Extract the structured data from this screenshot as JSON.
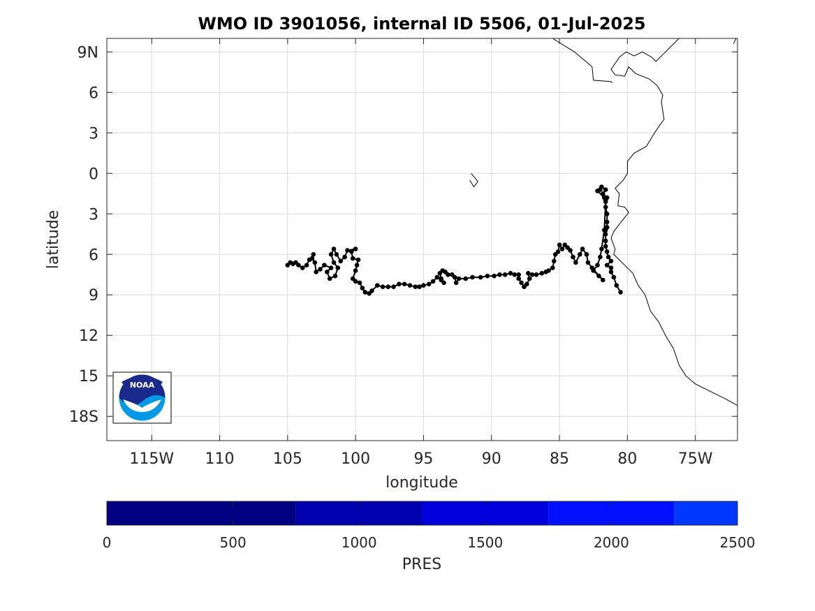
{
  "chart_data": {
    "type": "scatter",
    "title": "WMO ID 3901056, internal ID 5506, 01-Jul-2025",
    "xlabel": "longitude",
    "ylabel": "latitude",
    "xlim": [
      -118.3,
      -71.9
    ],
    "ylim": [
      -19.8,
      10.0
    ],
    "x_ticks": [
      {
        "value": -115,
        "label": "115W"
      },
      {
        "value": -110,
        "label": "110"
      },
      {
        "value": -105,
        "label": "105"
      },
      {
        "value": -100,
        "label": "100"
      },
      {
        "value": -95,
        "label": "95"
      },
      {
        "value": -90,
        "label": "90"
      },
      {
        "value": -85,
        "label": "85"
      },
      {
        "value": -80,
        "label": "80"
      },
      {
        "value": -75,
        "label": "75W"
      }
    ],
    "y_ticks": [
      {
        "value": 9,
        "label": "9N"
      },
      {
        "value": 6,
        "label": "6"
      },
      {
        "value": 3,
        "label": "3"
      },
      {
        "value": 0,
        "label": "0"
      },
      {
        "value": -3,
        "label": "3"
      },
      {
        "value": -6,
        "label": "6"
      },
      {
        "value": -9,
        "label": "9"
      },
      {
        "value": -12,
        "label": "12"
      },
      {
        "value": -15,
        "label": "15"
      },
      {
        "value": -18,
        "label": "18S"
      }
    ],
    "grid": true,
    "series": [
      {
        "color": "#000000",
        "points": [
          [
            -80.5,
            -8.8
          ],
          [
            -80.8,
            -8.3
          ],
          [
            -81.0,
            -7.7
          ],
          [
            -81.2,
            -7.3
          ],
          [
            -81.2,
            -7.0
          ],
          [
            -81.5,
            -6.8
          ],
          [
            -81.2,
            -6.5
          ],
          [
            -81.4,
            -6.2
          ],
          [
            -81.5,
            -5.8
          ],
          [
            -81.6,
            -5.4
          ],
          [
            -81.6,
            -5.0
          ],
          [
            -81.6,
            -4.5
          ],
          [
            -81.6,
            -4.2
          ],
          [
            -81.5,
            -4.0
          ],
          [
            -81.5,
            -3.6
          ],
          [
            -81.5,
            -3.0
          ],
          [
            -81.6,
            -2.5
          ],
          [
            -81.6,
            -2.0
          ],
          [
            -81.5,
            -1.8
          ],
          [
            -81.8,
            -1.5
          ],
          [
            -81.6,
            -1.2
          ],
          [
            -81.9,
            -1.0
          ],
          [
            -82.0,
            -1.2
          ],
          [
            -82.2,
            -1.3
          ],
          [
            -81.7,
            -1.8
          ],
          [
            -81.6,
            -2.1
          ],
          [
            -81.7,
            -4.2
          ],
          [
            -81.9,
            -5.6
          ],
          [
            -82.0,
            -6.2
          ],
          [
            -82.2,
            -6.8
          ],
          [
            -82.5,
            -7.2
          ],
          [
            -82.1,
            -7.6
          ],
          [
            -81.8,
            -7.9
          ],
          [
            -82.6,
            -7.0
          ],
          [
            -82.9,
            -6.6
          ],
          [
            -83.0,
            -6.0
          ],
          [
            -83.3,
            -5.6
          ],
          [
            -83.5,
            -6.0
          ],
          [
            -83.8,
            -6.6
          ],
          [
            -84.0,
            -6.2
          ],
          [
            -84.2,
            -5.7
          ],
          [
            -84.4,
            -5.5
          ],
          [
            -84.6,
            -5.3
          ],
          [
            -84.8,
            -5.6
          ],
          [
            -85.0,
            -5.3
          ],
          [
            -85.1,
            -5.8
          ],
          [
            -85.3,
            -6.0
          ],
          [
            -85.4,
            -6.5
          ],
          [
            -85.5,
            -7.0
          ],
          [
            -85.8,
            -7.2
          ],
          [
            -86.0,
            -7.3
          ],
          [
            -86.3,
            -7.4
          ],
          [
            -86.7,
            -7.5
          ],
          [
            -87.0,
            -7.5
          ],
          [
            -87.3,
            -7.4
          ],
          [
            -87.2,
            -7.8
          ],
          [
            -87.4,
            -8.2
          ],
          [
            -87.6,
            -8.4
          ],
          [
            -87.8,
            -8.1
          ],
          [
            -88.0,
            -7.8
          ],
          [
            -88.0,
            -7.5
          ],
          [
            -88.3,
            -7.5
          ],
          [
            -88.6,
            -7.4
          ],
          [
            -89.0,
            -7.5
          ],
          [
            -89.4,
            -7.5
          ],
          [
            -89.8,
            -7.6
          ],
          [
            -90.3,
            -7.6
          ],
          [
            -90.8,
            -7.7
          ],
          [
            -91.4,
            -7.7
          ],
          [
            -91.9,
            -7.8
          ],
          [
            -92.4,
            -7.8
          ],
          [
            -92.6,
            -8.1
          ],
          [
            -92.7,
            -7.7
          ],
          [
            -92.9,
            -7.5
          ],
          [
            -93.2,
            -7.5
          ],
          [
            -93.4,
            -7.3
          ],
          [
            -93.6,
            -7.2
          ],
          [
            -93.8,
            -7.4
          ],
          [
            -93.7,
            -7.8
          ],
          [
            -93.5,
            -8.1
          ],
          [
            -93.7,
            -7.9
          ],
          [
            -94.0,
            -7.7
          ],
          [
            -94.3,
            -8.0
          ],
          [
            -94.6,
            -8.2
          ],
          [
            -95.0,
            -8.3
          ],
          [
            -95.3,
            -8.4
          ],
          [
            -95.6,
            -8.4
          ],
          [
            -96.0,
            -8.3
          ],
          [
            -96.4,
            -8.2
          ],
          [
            -96.8,
            -8.2
          ],
          [
            -97.2,
            -8.4
          ],
          [
            -97.6,
            -8.4
          ],
          [
            -98.0,
            -8.4
          ],
          [
            -98.4,
            -8.3
          ],
          [
            -98.8,
            -8.7
          ],
          [
            -99.0,
            -8.9
          ],
          [
            -99.3,
            -8.8
          ],
          [
            -99.5,
            -8.5
          ],
          [
            -99.7,
            -8.1
          ],
          [
            -100.0,
            -8.0
          ],
          [
            -100.2,
            -7.8
          ],
          [
            -100.0,
            -7.2
          ],
          [
            -99.9,
            -6.8
          ],
          [
            -99.8,
            -6.4
          ],
          [
            -100.2,
            -6.3
          ],
          [
            -100.3,
            -5.8
          ],
          [
            -100.0,
            -5.6
          ],
          [
            -100.6,
            -5.7
          ],
          [
            -100.8,
            -6.2
          ],
          [
            -101.1,
            -6.5
          ],
          [
            -101.4,
            -6.0
          ],
          [
            -101.6,
            -5.6
          ],
          [
            -101.8,
            -6.0
          ],
          [
            -101.6,
            -6.6
          ],
          [
            -101.3,
            -7.0
          ],
          [
            -101.5,
            -7.6
          ],
          [
            -101.9,
            -7.8
          ],
          [
            -102.1,
            -7.3
          ],
          [
            -101.8,
            -7.0
          ],
          [
            -102.3,
            -6.8
          ],
          [
            -102.6,
            -7.1
          ],
          [
            -102.9,
            -7.3
          ],
          [
            -103.0,
            -6.6
          ],
          [
            -103.2,
            -6.3
          ],
          [
            -103.1,
            -6.0
          ],
          [
            -103.4,
            -6.4
          ],
          [
            -103.6,
            -6.8
          ],
          [
            -103.9,
            -7.0
          ],
          [
            -104.2,
            -6.8
          ],
          [
            -104.4,
            -6.6
          ],
          [
            -104.6,
            -6.7
          ],
          [
            -104.8,
            -6.6
          ],
          [
            -105.0,
            -6.8
          ]
        ]
      }
    ],
    "coastlines": [
      [
        [
          -81.1,
          6.7
        ],
        [
          -81.2,
          6.8
        ],
        [
          -82.5,
          6.9
        ],
        [
          -82.6,
          7.9
        ],
        [
          -83.3,
          8.5
        ],
        [
          -83.9,
          9.0
        ],
        [
          -85.5,
          10.0
        ]
      ],
      [
        [
          -76.2,
          10.0
        ],
        [
          -76.8,
          9.4
        ],
        [
          -77.3,
          8.9
        ],
        [
          -77.9,
          8.3
        ],
        [
          -78.2,
          8.6
        ],
        [
          -78.9,
          9.0
        ],
        [
          -79.5,
          8.7
        ],
        [
          -80.1,
          9.0
        ],
        [
          -80.6,
          8.6
        ],
        [
          -81.2,
          7.7
        ],
        [
          -80.9,
          7.3
        ],
        [
          -80.2,
          7.2
        ],
        [
          -79.9,
          7.9
        ],
        [
          -79.4,
          7.4
        ],
        [
          -78.4,
          7.0
        ],
        [
          -77.8,
          6.5
        ],
        [
          -77.4,
          5.8
        ],
        [
          -77.5,
          5.3
        ],
        [
          -77.3,
          4.0
        ],
        [
          -77.6,
          3.6
        ],
        [
          -78.0,
          3.0
        ],
        [
          -78.3,
          2.5
        ],
        [
          -78.6,
          2.0
        ],
        [
          -79.5,
          1.5
        ],
        [
          -80.0,
          0.9
        ],
        [
          -80.0,
          0.0
        ],
        [
          -80.3,
          -0.5
        ],
        [
          -80.9,
          -1.1
        ],
        [
          -80.6,
          -1.5
        ],
        [
          -80.7,
          -2.4
        ],
        [
          -80.2,
          -2.5
        ],
        [
          -79.9,
          -2.9
        ],
        [
          -80.3,
          -3.4
        ],
        [
          -81.0,
          -4.3
        ],
        [
          -81.2,
          -4.8
        ],
        [
          -80.9,
          -5.6
        ],
        [
          -81.0,
          -6.0
        ],
        [
          -80.2,
          -6.8
        ],
        [
          -79.6,
          -7.4
        ],
        [
          -79.2,
          -8.3
        ],
        [
          -78.7,
          -9.0
        ],
        [
          -78.3,
          -10.2
        ],
        [
          -77.7,
          -11.0
        ],
        [
          -77.2,
          -12.0
        ],
        [
          -76.6,
          -13.0
        ],
        [
          -76.2,
          -14.2
        ],
        [
          -75.7,
          -15.0
        ],
        [
          -75.0,
          -15.6
        ],
        [
          -73.8,
          -16.2
        ],
        [
          -72.8,
          -16.7
        ],
        [
          -71.9,
          -17.2
        ]
      ],
      [
        [
          -72.2,
          9.6
        ],
        [
          -72.0,
          10.0
        ]
      ],
      [
        [
          -91.5,
          0.0
        ],
        [
          -91.0,
          -0.6
        ],
        [
          -91.3,
          -1.0
        ],
        [
          -91.6,
          -0.5
        ]
      ]
    ],
    "logo_text": "NOAA",
    "colorbar": {
      "label": "PRES",
      "range": [
        0,
        2500
      ],
      "ticks": [
        0,
        500,
        1000,
        1500,
        2000,
        2500
      ],
      "bands": [
        {
          "from": 0,
          "to": 750,
          "color": "#000080"
        },
        {
          "from": 750,
          "to": 1250,
          "color": "#0000B0"
        },
        {
          "from": 1250,
          "to": 1750,
          "color": "#0000DD"
        },
        {
          "from": 1750,
          "to": 2250,
          "color": "#0010FF"
        },
        {
          "from": 2250,
          "to": 2500,
          "color": "#0038FF"
        }
      ]
    }
  }
}
